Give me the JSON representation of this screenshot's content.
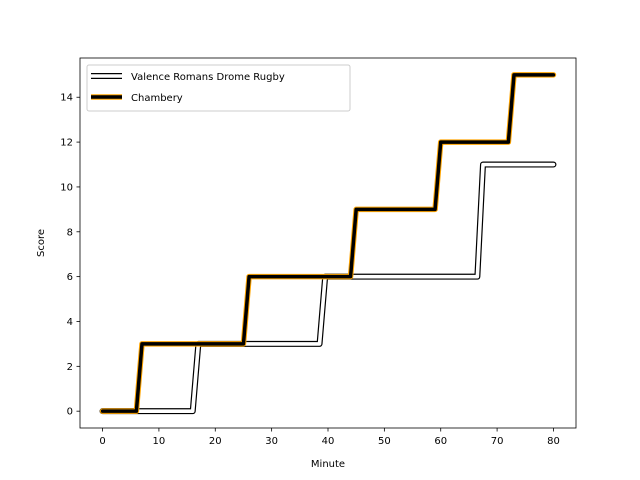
{
  "chart_data": {
    "type": "line",
    "title": "",
    "xlabel": "Minute",
    "ylabel": "Score",
    "xlim": [
      -4,
      84
    ],
    "ylim": [
      -0.75,
      15.75
    ],
    "xticks": [
      0,
      10,
      20,
      30,
      40,
      50,
      60,
      70,
      80
    ],
    "yticks": [
      0,
      2,
      4,
      6,
      8,
      10,
      12,
      14
    ],
    "grid": false,
    "legend_position": "upper-left",
    "series": [
      {
        "name": "Valence Romans Drome Rugby",
        "style": "outlined",
        "line_color": "#ffffff",
        "outline_color": "#000000",
        "points": [
          [
            0,
            0
          ],
          [
            6,
            0
          ],
          [
            16,
            0
          ],
          [
            17,
            3
          ],
          [
            38.5,
            3
          ],
          [
            39.5,
            6
          ],
          [
            66.5,
            6
          ],
          [
            67.5,
            11
          ],
          [
            80,
            11
          ]
        ]
      },
      {
        "name": "Chambery",
        "style": "thick",
        "line_color": "#000000",
        "outline_color": "#ffa500",
        "points": [
          [
            0,
            0
          ],
          [
            6,
            0
          ],
          [
            7,
            3
          ],
          [
            25,
            3
          ],
          [
            26,
            6
          ],
          [
            44,
            6
          ],
          [
            45,
            9
          ],
          [
            59,
            9
          ],
          [
            60,
            12
          ],
          [
            72,
            12
          ],
          [
            73,
            15
          ],
          [
            80,
            15
          ]
        ]
      }
    ]
  }
}
